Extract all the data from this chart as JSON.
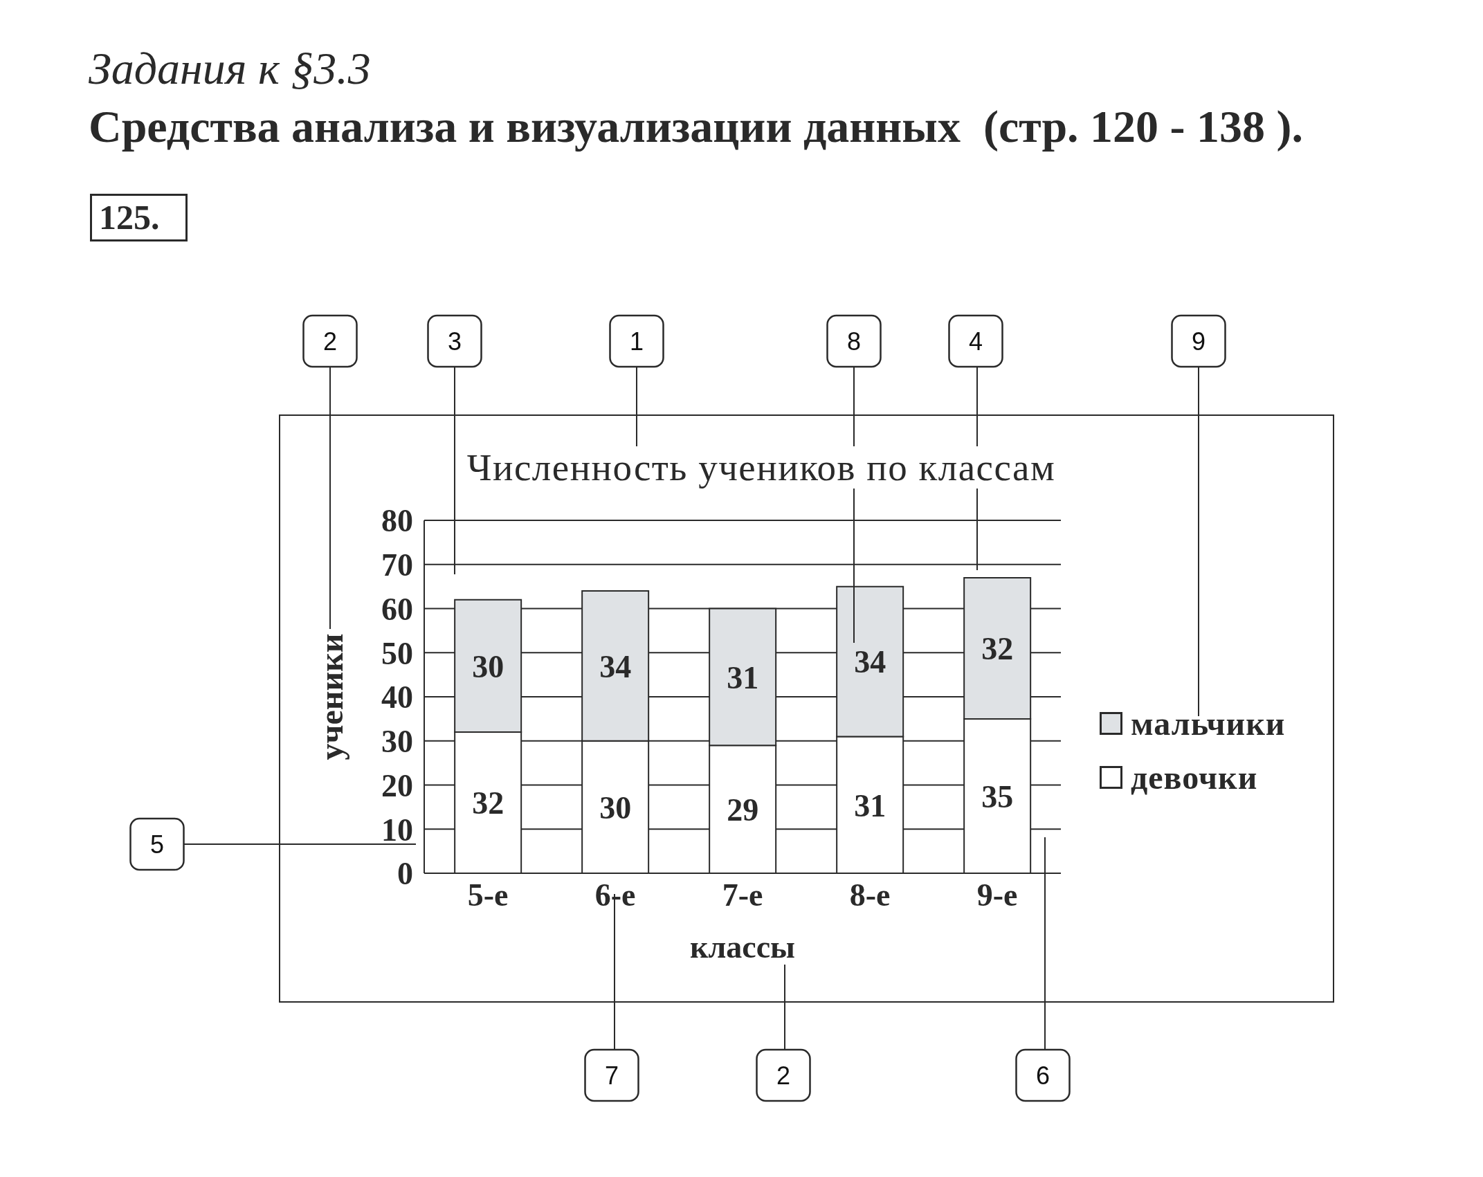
{
  "chart_data": {
    "type": "bar",
    "title": "Численность учеников по классам",
    "xlabel": "классы",
    "ylabel": "ученики",
    "categories": [
      "5-е",
      "6-е",
      "7-е",
      "8-е",
      "9-е"
    ],
    "series": [
      {
        "name": "девочки",
        "color": "#ffffff",
        "values": [
          32,
          30,
          29,
          31,
          35
        ]
      },
      {
        "name": "мальчики",
        "color": "#dfe2e5",
        "values": [
          30,
          34,
          31,
          34,
          32
        ]
      }
    ],
    "stacked": true,
    "ylim": [
      0,
      80
    ],
    "yticks": [
      0,
      10,
      20,
      30,
      40,
      50,
      60,
      70,
      80
    ],
    "grid": "y",
    "legend": "right",
    "data_labels": true,
    "annotations": [
      "Задания к §3.3",
      "Средства анализа и визуализации данных  (стр. 120 - 138 ).",
      "125.",
      "2",
      "3",
      "1",
      "8",
      "4",
      "9",
      "5",
      "7",
      "2",
      "6"
    ]
  }
}
